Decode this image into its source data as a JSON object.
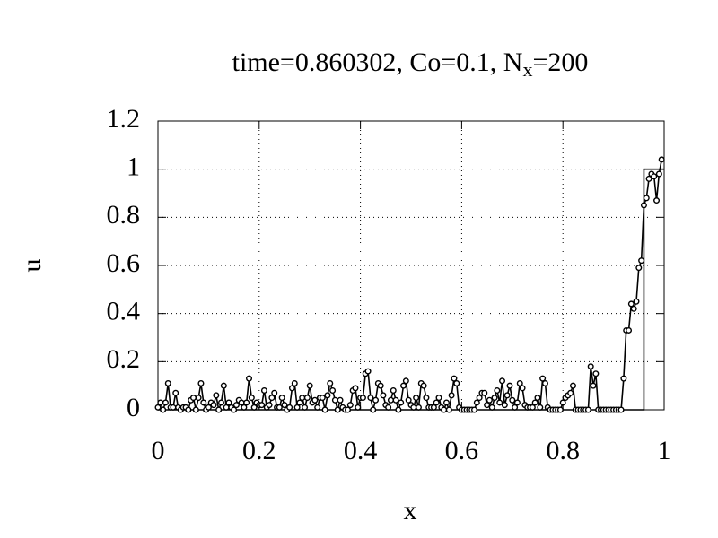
{
  "chart_data": {
    "type": "line",
    "title_parts": [
      "time=0.860302, Co=0.1, N",
      "x",
      "=200"
    ],
    "xlabel": "x",
    "ylabel": "u",
    "xlim": [
      0,
      1
    ],
    "ylim": [
      0,
      1.2
    ],
    "xticks": [
      0,
      0.2,
      0.4,
      0.6,
      0.8,
      1
    ],
    "yticks": [
      0,
      0.2,
      0.4,
      0.6,
      0.8,
      1,
      1.2
    ],
    "grid": true,
    "series": [
      {
        "color": "#000000",
        "marker": false,
        "x": [
          0,
          0.96,
          0.96,
          1
        ],
        "values": [
          0,
          0,
          1,
          1
        ]
      },
      {
        "color": "#000000",
        "marker": true,
        "x": [
          0,
          0.005,
          0.01,
          0.015,
          0.02,
          0.025,
          0.03,
          0.035,
          0.04,
          0.045,
          0.05,
          0.055,
          0.06,
          0.065,
          0.07,
          0.075,
          0.08,
          0.085,
          0.09,
          0.095,
          0.1,
          0.105,
          0.11,
          0.115,
          0.12,
          0.125,
          0.13,
          0.135,
          0.14,
          0.145,
          0.15,
          0.155,
          0.16,
          0.165,
          0.17,
          0.175,
          0.18,
          0.185,
          0.19,
          0.195,
          0.2,
          0.205,
          0.21,
          0.215,
          0.22,
          0.225,
          0.23,
          0.235,
          0.24,
          0.245,
          0.25,
          0.255,
          0.26,
          0.265,
          0.27,
          0.275,
          0.28,
          0.285,
          0.29,
          0.295,
          0.3,
          0.305,
          0.31,
          0.315,
          0.32,
          0.325,
          0.33,
          0.335,
          0.34,
          0.345,
          0.35,
          0.355,
          0.36,
          0.365,
          0.37,
          0.375,
          0.38,
          0.385,
          0.39,
          0.395,
          0.4,
          0.405,
          0.41,
          0.415,
          0.42,
          0.425,
          0.43,
          0.435,
          0.44,
          0.445,
          0.45,
          0.455,
          0.46,
          0.465,
          0.47,
          0.475,
          0.48,
          0.485,
          0.49,
          0.495,
          0.5,
          0.505,
          0.51,
          0.515,
          0.52,
          0.525,
          0.53,
          0.535,
          0.54,
          0.545,
          0.55,
          0.555,
          0.56,
          0.565,
          0.57,
          0.575,
          0.58,
          0.585,
          0.59,
          0.595,
          0.6,
          0.605,
          0.61,
          0.615,
          0.62,
          0.625,
          0.63,
          0.635,
          0.64,
          0.645,
          0.65,
          0.655,
          0.66,
          0.665,
          0.67,
          0.675,
          0.68,
          0.685,
          0.69,
          0.695,
          0.7,
          0.705,
          0.71,
          0.715,
          0.72,
          0.725,
          0.73,
          0.735,
          0.74,
          0.745,
          0.75,
          0.755,
          0.76,
          0.765,
          0.77,
          0.775,
          0.78,
          0.785,
          0.79,
          0.795,
          0.8,
          0.805,
          0.81,
          0.815,
          0.82,
          0.825,
          0.83,
          0.835,
          0.84,
          0.845,
          0.85,
          0.855,
          0.86,
          0.865,
          0.87,
          0.875,
          0.88,
          0.885,
          0.89,
          0.895,
          0.9,
          0.905,
          0.91,
          0.915,
          0.92,
          0.925,
          0.93,
          0.935,
          0.94,
          0.945,
          0.95,
          0.955,
          0.96,
          0.965,
          0.97,
          0.975,
          0.98,
          0.985,
          0.99,
          0.995
        ],
        "values": [
          0.01,
          0.03,
          0,
          0.03,
          0.11,
          0.01,
          0.01,
          0.07,
          0.01,
          0,
          0.01,
          0.01,
          0,
          0.04,
          0.05,
          0,
          0.05,
          0.11,
          0.03,
          0,
          0.01,
          0.03,
          0.02,
          0.06,
          0,
          0.03,
          0.1,
          0.01,
          0.03,
          0.01,
          0,
          0.02,
          0.04,
          0.03,
          0.01,
          0.03,
          0.13,
          0.05,
          0.01,
          0.03,
          0.02,
          0.02,
          0.08,
          0.01,
          0.02,
          0.05,
          0.07,
          0.01,
          0.01,
          0.05,
          0.02,
          0,
          0.01,
          0.09,
          0.11,
          0.01,
          0.03,
          0.05,
          0.01,
          0.05,
          0.1,
          0.03,
          0.04,
          0.01,
          0.05,
          0.05,
          0,
          0.06,
          0.11,
          0.08,
          0.04,
          0,
          0.04,
          0.01,
          0,
          0,
          0.02,
          0.08,
          0.09,
          0.01,
          0.05,
          0.05,
          0.15,
          0.16,
          0.05,
          0,
          0.04,
          0.11,
          0.1,
          0.06,
          0.02,
          0.01,
          0.04,
          0.08,
          0.04,
          0,
          0.03,
          0.1,
          0.12,
          0.04,
          0.02,
          0.01,
          0.05,
          0.01,
          0.11,
          0.1,
          0.05,
          0.01,
          0.01,
          0.01,
          0.03,
          0.05,
          0.01,
          0,
          0.03,
          0,
          0.06,
          0.13,
          0.11,
          0.01,
          0,
          0,
          0,
          0,
          0,
          0,
          0.03,
          0.05,
          0.07,
          0.07,
          0.02,
          0.04,
          0.01,
          0.05,
          0.08,
          0.03,
          0.12,
          0.02,
          0.06,
          0.1,
          0.04,
          0.01,
          0.03,
          0.11,
          0.09,
          0.02,
          0.01,
          0.01,
          0.01,
          0.03,
          0.05,
          0.01,
          0.13,
          0.11,
          0.01,
          0,
          0,
          0,
          0,
          0,
          0.03,
          0.05,
          0.06,
          0.07,
          0.1,
          0,
          0,
          0,
          0,
          0,
          0,
          0.18,
          0.1,
          0.15,
          0,
          0,
          0,
          0,
          0,
          0,
          0,
          0,
          0,
          0,
          0.13,
          0.33,
          0.33,
          0.44,
          0.42,
          0.45,
          0.59,
          0.62,
          0.85,
          0.88,
          0.96,
          0.98,
          0.97,
          0.87,
          0.98,
          1.04
        ]
      }
    ]
  }
}
